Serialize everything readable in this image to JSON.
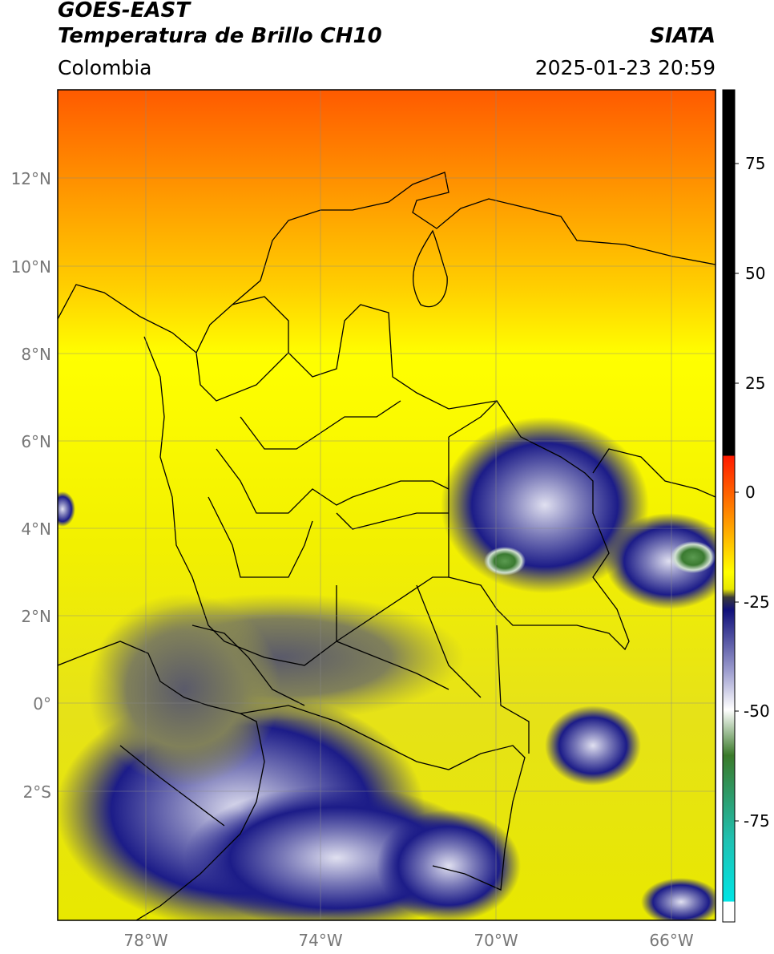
{
  "header": {
    "title_line1": "GOES-EAST",
    "title_line2": "Temperatura de Brillo CH10",
    "brand": "SIATA",
    "region": "Colombia",
    "datetime": "2025-01-23 20:59"
  },
  "map": {
    "lat_labels": [
      "12°N",
      "10°N",
      "8°N",
      "6°N",
      "4°N",
      "2°N",
      "0°",
      "2°S"
    ],
    "lon_labels": [
      "78°W",
      "74°W",
      "70°W",
      "66°W"
    ],
    "lat_values": [
      12,
      10,
      8,
      6,
      4,
      2,
      0,
      -2
    ],
    "lon_values": [
      -78,
      -74,
      -70,
      -66
    ],
    "extent": {
      "lon_min": -80,
      "lon_max": -65,
      "lat_min": -5,
      "lat_max": 14
    }
  },
  "colorbar": {
    "tick_labels": [
      "75",
      "50",
      "25",
      "0",
      "-25",
      "-50",
      "-75"
    ],
    "tick_values": [
      75,
      50,
      25,
      0,
      -25,
      -50,
      -75
    ],
    "range": [
      -95,
      90
    ],
    "colors": {
      "black": "#000000",
      "red": "#ff1a00",
      "orange": "#ff9a00",
      "yellow": "#ffff00",
      "olive": "#8a8a3a",
      "navy": "#101080",
      "white": "#ffffff",
      "green": "#3a7a2a",
      "teal": "#20c0b0",
      "cyan": "#00e5e5"
    }
  }
}
